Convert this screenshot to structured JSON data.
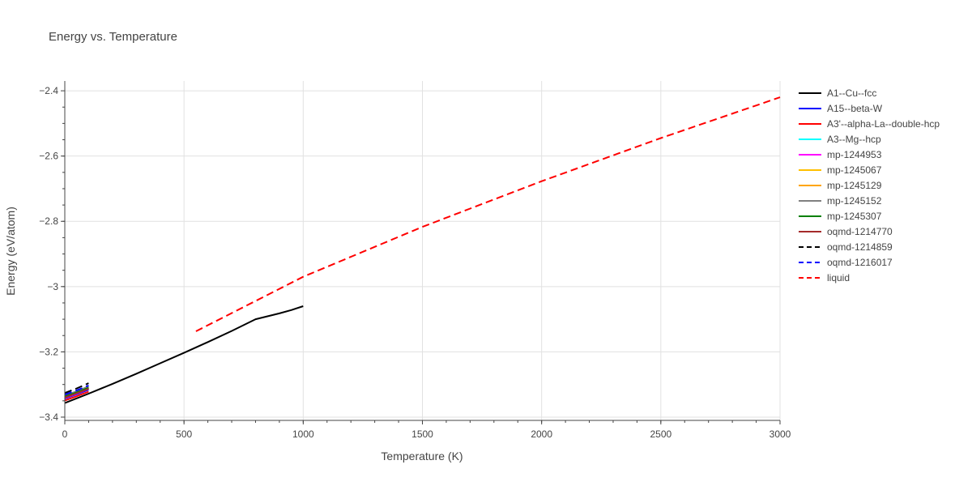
{
  "chart_data": {
    "type": "line",
    "title": "Energy vs. Temperature",
    "xlabel": "Temperature (K)",
    "ylabel": "Energy (eV/atom)",
    "xlim": [
      0,
      3000
    ],
    "ylim": [
      -3.41,
      -2.37
    ],
    "xticks": [
      0,
      500,
      1000,
      1500,
      2000,
      2500,
      3000
    ],
    "xtick_labels": [
      "0",
      "500",
      "1000",
      "1500",
      "2000",
      "2500",
      "3000"
    ],
    "yticks": [
      -2.4,
      -2.6,
      -2.8,
      -3.0,
      -3.2,
      -3.4
    ],
    "ytick_labels": [
      "−2.4",
      "−2.6",
      "−2.8",
      "−3",
      "−3.2",
      "−3.4"
    ],
    "grid": true,
    "legend_position": "right",
    "series": [
      {
        "name": "A1--Cu--fcc",
        "color": "#000000",
        "dash": "solid",
        "x": [
          0,
          100,
          200,
          300,
          400,
          500,
          600,
          700,
          800,
          900,
          950,
          1000
        ],
        "y": [
          -3.357,
          -3.328,
          -3.298,
          -3.267,
          -3.235,
          -3.203,
          -3.17,
          -3.136,
          -3.1,
          -3.082,
          -3.072,
          -3.06
        ]
      },
      {
        "name": "A15--beta-W",
        "color": "#0000ff",
        "dash": "solid",
        "x": [
          0,
          50,
          100
        ],
        "y": [
          -3.343,
          -3.33,
          -3.316
        ]
      },
      {
        "name": "A3'--alpha-La--double-hcp",
        "color": "#ff0000",
        "dash": "solid",
        "x": [
          0,
          50,
          100
        ],
        "y": [
          -3.349,
          -3.336,
          -3.322
        ]
      },
      {
        "name": "A3--Mg--hcp",
        "color": "#00ffff",
        "dash": "solid",
        "x": [
          0,
          50,
          100
        ],
        "y": [
          -3.339,
          -3.326,
          -3.311
        ]
      },
      {
        "name": "mp-1244953",
        "color": "#ff00ff",
        "dash": "solid",
        "x": [
          0,
          50,
          100
        ],
        "y": [
          -3.341,
          -3.328,
          -3.313
        ]
      },
      {
        "name": "mp-1245067",
        "color": "#ffc000",
        "dash": "solid",
        "x": [
          0,
          50,
          100
        ],
        "y": [
          -3.336,
          -3.323,
          -3.309
        ]
      },
      {
        "name": "mp-1245129",
        "color": "#ffa500",
        "dash": "solid",
        "x": [
          0,
          50,
          100
        ],
        "y": [
          -3.338,
          -3.325,
          -3.311
        ]
      },
      {
        "name": "mp-1245152",
        "color": "#808080",
        "dash": "solid",
        "x": [
          0,
          50,
          100
        ],
        "y": [
          -3.334,
          -3.321,
          -3.306
        ]
      },
      {
        "name": "mp-1245307",
        "color": "#008000",
        "dash": "solid",
        "x": [
          0,
          50,
          100
        ],
        "y": [
          -3.337,
          -3.324,
          -3.31
        ]
      },
      {
        "name": "oqmd-1214770",
        "color": "#a52a2a",
        "dash": "solid",
        "x": [
          0,
          50,
          100
        ],
        "y": [
          -3.34,
          -3.327,
          -3.313
        ]
      },
      {
        "name": "oqmd-1214859",
        "color": "#000000",
        "dash": "dash",
        "x": [
          0,
          50,
          100
        ],
        "y": [
          -3.326,
          -3.312,
          -3.296
        ]
      },
      {
        "name": "oqmd-1216017",
        "color": "#0000ff",
        "dash": "dash",
        "x": [
          0,
          50,
          100
        ],
        "y": [
          -3.331,
          -3.318,
          -3.303
        ]
      },
      {
        "name": "liquid",
        "color": "#ff0000",
        "dash": "dash",
        "x": [
          550,
          1000,
          1500,
          2000,
          2500,
          3000
        ],
        "y": [
          -3.137,
          -2.97,
          -2.817,
          -2.677,
          -2.545,
          -2.42
        ]
      }
    ]
  }
}
